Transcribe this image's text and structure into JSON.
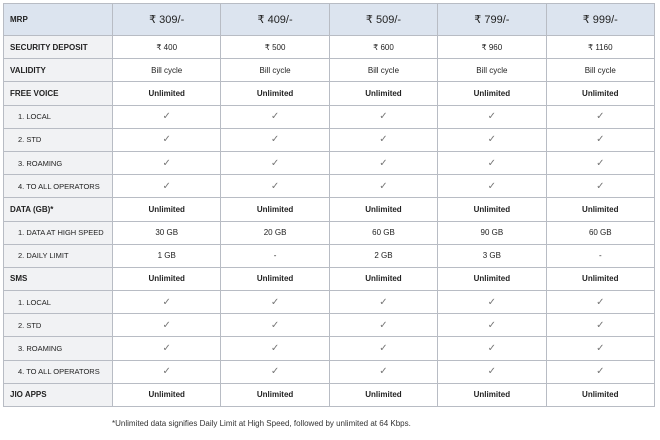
{
  "table": {
    "header": [
      "MRP",
      "₹ 309/-",
      "₹ 409/-",
      "₹ 509/-",
      "₹ 799/-",
      "₹ 999/-"
    ],
    "rows": [
      [
        "SECURITY DEPOSIT",
        "₹ 400",
        "₹ 500",
        "₹ 600",
        "₹ 960",
        "₹ 1160"
      ],
      [
        "VALIDITY",
        "Bill cycle",
        "Bill cycle",
        "Bill cycle",
        "Bill cycle",
        "Bill cycle"
      ],
      [
        "FREE VOICE",
        "Unlimited",
        "Unlimited",
        "Unlimited",
        "Unlimited",
        "Unlimited"
      ],
      [
        "1. LOCAL",
        "✓",
        "✓",
        "✓",
        "✓",
        "✓"
      ],
      [
        "2. STD",
        "✓",
        "✓",
        "✓",
        "✓",
        "✓"
      ],
      [
        "3. ROAMING",
        "✓",
        "✓",
        "✓",
        "✓",
        "✓"
      ],
      [
        "4. TO ALL OPERATORS",
        "✓",
        "✓",
        "✓",
        "✓",
        "✓"
      ],
      [
        "DATA (GB)*",
        "Unlimited",
        "Unlimited",
        "Unlimited",
        "Unlimited",
        "Unlimited"
      ],
      [
        "1. DATA AT HIGH SPEED",
        "30 GB",
        "20 GB",
        "60 GB",
        "90 GB",
        "60 GB"
      ],
      [
        "2. DAILY LIMIT",
        "1 GB",
        "-",
        "2 GB",
        "3 GB",
        "-"
      ],
      [
        "SMS",
        "Unlimited",
        "Unlimited",
        "Unlimited",
        "Unlimited",
        "Unlimited"
      ],
      [
        "1. LOCAL",
        "✓",
        "✓",
        "✓",
        "✓",
        "✓"
      ],
      [
        "2. STD",
        "✓",
        "✓",
        "✓",
        "✓",
        "✓"
      ],
      [
        "3. ROAMING",
        "✓",
        "✓",
        "✓",
        "✓",
        "✓"
      ],
      [
        "4. TO ALL OPERATORS",
        "✓",
        "✓",
        "✓",
        "✓",
        "✓"
      ],
      [
        "JIO APPS",
        "Unlimited",
        "Unlimited",
        "Unlimited",
        "Unlimited",
        "Unlimited"
      ]
    ]
  },
  "footnote": "*Unlimited data signifies Daily Limit at High Speed, followed by unlimited at 64 Kbps."
}
